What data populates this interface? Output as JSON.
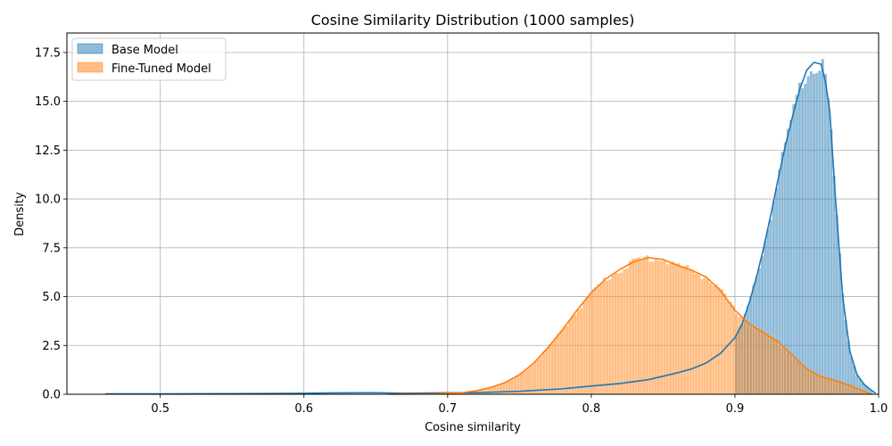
{
  "chart_data": {
    "type": "histogram",
    "title": "Cosine Similarity Distribution (1000 samples)",
    "xlabel": "Cosine similarity",
    "ylabel": "Density",
    "xlim": [
      0.435,
      1.0
    ],
    "ylim": [
      0,
      18.5
    ],
    "xticks": [
      0.5,
      0.6,
      0.7,
      0.8,
      0.9,
      1.0
    ],
    "xtick_labels": [
      "0.5",
      "0.6",
      "0.7",
      "0.8",
      "0.9",
      "1.0"
    ],
    "yticks": [
      0,
      2.5,
      5,
      7.5,
      10,
      12.5,
      15,
      17.5
    ],
    "ytick_labels": [
      "0.0",
      "2.5",
      "5.0",
      "7.5",
      "10.0",
      "12.5",
      "15.0",
      "17.5"
    ],
    "grid": true,
    "legend_position": "top-left",
    "series": [
      {
        "name": "Base Model",
        "bar_color": "#1f77b4",
        "line_color": "#1f77b4",
        "kde": {
          "x": [
            0.462,
            0.5,
            0.55,
            0.6,
            0.62,
            0.65,
            0.67,
            0.7,
            0.72,
            0.75,
            0.78,
            0.8,
            0.82,
            0.84,
            0.86,
            0.87,
            0.88,
            0.89,
            0.9,
            0.905,
            0.91,
            0.915,
            0.92,
            0.925,
            0.93,
            0.935,
            0.94,
            0.945,
            0.95,
            0.955,
            0.96,
            0.963,
            0.966,
            0.97,
            0.975,
            0.98,
            0.985,
            0.99,
            0.995,
            0.998
          ],
          "y": [
            0.02,
            0.02,
            0.03,
            0.05,
            0.07,
            0.08,
            0.05,
            0.08,
            0.08,
            0.15,
            0.28,
            0.42,
            0.55,
            0.75,
            1.1,
            1.3,
            1.6,
            2.1,
            2.9,
            3.6,
            4.7,
            6.0,
            7.5,
            9.2,
            11.0,
            12.7,
            14.2,
            15.6,
            16.6,
            17.0,
            16.9,
            16.0,
            14.5,
            10.0,
            5.0,
            2.2,
            1.0,
            0.5,
            0.2,
            0.05
          ],
          "bar_range": [
            0.9,
            0.995
          ]
        }
      },
      {
        "name": "Fine-Tuned Model",
        "bar_color": "#ff7f0e",
        "line_color": "#ff7f0e",
        "kde": {
          "x": [
            0.66,
            0.69,
            0.71,
            0.72,
            0.73,
            0.74,
            0.75,
            0.76,
            0.77,
            0.78,
            0.79,
            0.8,
            0.81,
            0.82,
            0.83,
            0.84,
            0.85,
            0.86,
            0.87,
            0.88,
            0.89,
            0.9,
            0.91,
            0.92,
            0.93,
            0.94,
            0.95,
            0.96,
            0.97,
            0.98,
            0.99,
            0.995
          ],
          "y": [
            0.0,
            0.02,
            0.08,
            0.18,
            0.35,
            0.6,
            1.0,
            1.6,
            2.4,
            3.3,
            4.3,
            5.2,
            5.9,
            6.4,
            6.8,
            7.0,
            6.9,
            6.6,
            6.35,
            6.0,
            5.3,
            4.3,
            3.6,
            3.15,
            2.7,
            2.0,
            1.3,
            0.9,
            0.7,
            0.45,
            0.15,
            0.0
          ],
          "bar_range": [
            0.66,
            0.995
          ]
        }
      }
    ]
  }
}
